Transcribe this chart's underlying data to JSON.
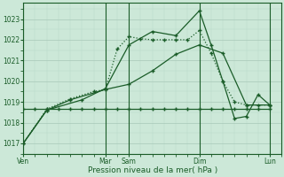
{
  "background_color": "#cce8d8",
  "grid_color_major": "#a8c8b8",
  "grid_color_minor": "#b8d8c8",
  "line_color": "#1a5c28",
  "title": "Pression niveau de la mer( hPa )",
  "ylim": [
    1016.5,
    1023.8
  ],
  "yticks": [
    1017,
    1018,
    1019,
    1020,
    1021,
    1022,
    1023
  ],
  "xlim": [
    0,
    22
  ],
  "major_xtick_positions": [
    0,
    7,
    9,
    15,
    21
  ],
  "major_xtick_labels": [
    "Ven",
    "Mar",
    "Sam",
    "Dim",
    "Lun"
  ],
  "vline_positions": [
    0,
    7,
    9,
    15,
    21
  ],
  "line1_x": [
    0,
    1,
    2,
    3,
    4,
    5,
    6,
    7,
    8,
    9,
    10,
    11,
    12,
    13,
    14,
    15,
    16,
    17,
    18,
    19,
    20,
    21
  ],
  "line1_y": [
    1018.65,
    1018.65,
    1018.65,
    1018.65,
    1018.65,
    1018.65,
    1018.65,
    1018.65,
    1018.65,
    1018.65,
    1018.65,
    1018.65,
    1018.65,
    1018.65,
    1018.65,
    1018.65,
    1018.65,
    1018.65,
    1018.65,
    1018.65,
    1018.65,
    1018.65
  ],
  "line2_x": [
    0,
    2,
    4,
    7,
    9,
    11,
    13,
    15,
    17,
    19,
    21
  ],
  "line2_y": [
    1017.0,
    1018.6,
    1019.1,
    1019.6,
    1019.85,
    1020.5,
    1021.3,
    1021.75,
    1021.35,
    1018.85,
    1018.85
  ],
  "line3_x": [
    0,
    2,
    4,
    6,
    7,
    8,
    9,
    10,
    11,
    12,
    13,
    14,
    15,
    16,
    17,
    18,
    19,
    20,
    21
  ],
  "line3_y": [
    1017.0,
    1018.65,
    1019.15,
    1019.5,
    1019.6,
    1021.55,
    1022.15,
    1022.05,
    1022.0,
    1022.0,
    1022.0,
    1022.0,
    1022.45,
    1021.35,
    1020.0,
    1019.0,
    1018.85,
    1018.85,
    1018.85
  ],
  "line4_x": [
    0,
    2,
    5,
    7,
    9,
    11,
    13,
    15,
    16,
    17,
    18,
    19,
    20,
    21
  ],
  "line4_y": [
    1017.0,
    1018.6,
    1019.1,
    1019.65,
    1021.75,
    1022.4,
    1022.2,
    1023.4,
    1021.75,
    1020.0,
    1018.2,
    1018.3,
    1019.35,
    1018.85
  ]
}
